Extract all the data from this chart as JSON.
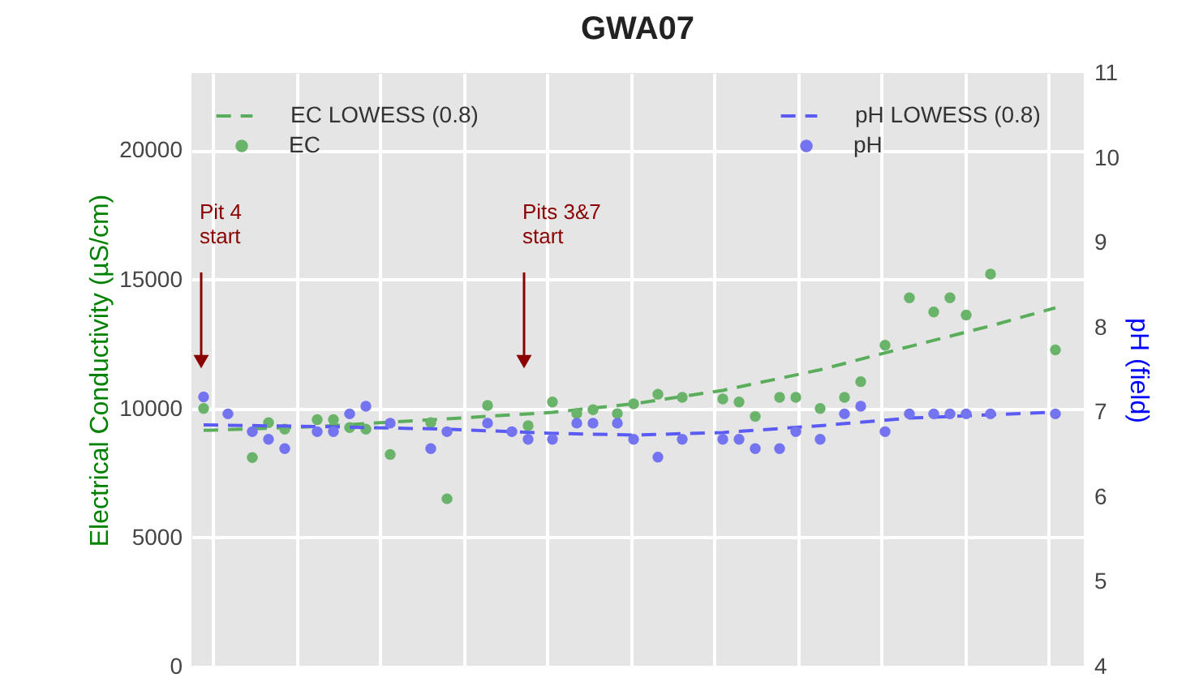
{
  "chart_data": {
    "type": "scatter",
    "title": "GWA07",
    "ylabel": "Electrical Conductivity (µS/cm)",
    "y2label": "pH (field)",
    "categories": [
      null,
      null,
      null,
      null,
      null,
      null,
      null,
      null,
      null,
      null,
      null,
      null,
      null,
      null,
      null,
      null,
      null,
      null,
      null,
      null,
      null,
      null,
      null,
      null,
      null,
      null,
      null,
      null,
      null,
      null,
      null,
      null,
      null,
      null,
      null,
      null,
      null,
      null,
      null,
      null,
      null,
      null,
      null,
      null,
      null,
      null,
      null,
      null,
      null,
      null,
      null,
      null,
      null,
      null,
      null,
      null,
      null,
      null,
      null,
      null,
      null,
      null,
      null,
      null,
      null,
      null,
      null,
      null,
      null,
      null,
      null,
      null,
      null,
      null,
      null,
      null,
      null,
      null,
      null,
      null,
      null,
      null,
      null,
      null,
      null,
      null,
      null,
      null,
      null,
      null,
      null,
      null,
      null,
      null,
      null,
      null,
      null,
      null,
      null,
      null,
      null,
      null,
      null,
      null,
      null,
      null,
      null,
      null,
      null,
      null
    ],
    "ylim": [
      0,
      23000
    ],
    "yticks": [
      0,
      5000,
      10000,
      15000,
      20000
    ],
    "y2lim": [
      4,
      11
    ],
    "y2ticks": [
      4,
      5,
      6,
      7,
      8,
      9,
      10,
      11
    ],
    "grid": true,
    "legend": "top",
    "series": [
      {
        "name": "EC LOWESS (0.8)",
        "type": "line",
        "line_style": "dashed",
        "color": "#5aad5a",
        "values": [
          null,
          9150,
          null,
          null,
          null,
          null,
          null,
          null,
          null,
          null,
          null,
          null,
          null,
          null,
          null,
          9300,
          null,
          null,
          null,
          null,
          null,
          null,
          null,
          null,
          null,
          null,
          null,
          null,
          null,
          null,
          null,
          9600,
          null,
          null,
          null,
          null,
          null,
          null,
          null,
          null,
          null,
          null,
          null,
          null,
          9850,
          null,
          null,
          null,
          null,
          null,
          null,
          null,
          null,
          null,
          10180,
          null,
          null,
          null,
          null,
          null,
          null,
          null,
          null,
          null,
          null,
          10700,
          null,
          null,
          null,
          null,
          null,
          null,
          null,
          null,
          null,
          null,
          null,
          11500,
          null,
          null,
          null,
          null,
          null,
          null,
          null,
          null,
          null,
          null,
          12400,
          null,
          null,
          null,
          null,
          null,
          null,
          null,
          null,
          null,
          13200,
          null,
          null,
          null,
          null,
          null,
          null,
          null,
          13900,
          null,
          null,
          null
        ]
      },
      {
        "name": "EC",
        "marker": "circle",
        "color": "#6ab36a",
        "values": [
          null,
          10000,
          null,
          null,
          null,
          null,
          null,
          8100,
          null,
          9450,
          null,
          9200,
          null,
          null,
          null,
          9570,
          null,
          9570,
          null,
          9260,
          null,
          9200,
          null,
          null,
          8220,
          null,
          null,
          null,
          null,
          9450,
          null,
          6500,
          null,
          null,
          null,
          null,
          10120,
          null,
          null,
          null,
          null,
          9330,
          null,
          null,
          10250,
          null,
          null,
          9800,
          null,
          9950,
          null,
          null,
          9800,
          null,
          10180,
          null,
          null,
          10550,
          null,
          null,
          10430,
          null,
          null,
          null,
          null,
          10370,
          null,
          10250,
          null,
          9690,
          null,
          null,
          10430,
          null,
          10430,
          null,
          null,
          10000,
          null,
          null,
          10430,
          null,
          11040,
          null,
          null,
          12450,
          null,
          null,
          14290,
          null,
          null,
          13740,
          null,
          14290,
          null,
          13620,
          null,
          null,
          15210,
          null,
          null,
          null,
          null,
          null,
          null,
          null,
          12270,
          null,
          null,
          null
        ]
      },
      {
        "name": "pH LOWESS (0.8)",
        "type": "line",
        "axis": "y2",
        "line_style": "dashed",
        "color": "#5a5af5",
        "values": [
          null,
          6.85,
          null,
          null,
          null,
          null,
          null,
          null,
          null,
          null,
          null,
          null,
          null,
          null,
          null,
          6.83,
          null,
          null,
          null,
          null,
          null,
          null,
          null,
          null,
          null,
          null,
          null,
          null,
          null,
          null,
          null,
          6.8,
          null,
          null,
          null,
          null,
          null,
          null,
          null,
          null,
          null,
          null,
          null,
          null,
          6.75,
          null,
          null,
          null,
          null,
          null,
          null,
          null,
          null,
          null,
          6.73,
          null,
          null,
          null,
          null,
          null,
          null,
          null,
          null,
          null,
          null,
          6.76,
          null,
          null,
          null,
          null,
          null,
          null,
          null,
          null,
          null,
          null,
          null,
          6.84,
          null,
          null,
          null,
          null,
          null,
          null,
          null,
          null,
          null,
          null,
          6.93,
          null,
          null,
          null,
          null,
          null,
          null,
          null,
          null,
          null,
          6.97,
          null,
          null,
          null,
          null,
          null,
          null,
          null,
          7.0,
          null,
          null,
          null
        ]
      },
      {
        "name": "pH",
        "axis": "y2",
        "marker": "circle",
        "color": "#7474f0",
        "values": [
          null,
          7.18,
          null,
          null,
          6.98,
          null,
          null,
          6.77,
          null,
          6.68,
          null,
          6.57,
          null,
          null,
          null,
          6.77,
          null,
          6.77,
          null,
          6.98,
          null,
          7.07,
          null,
          null,
          6.87,
          null,
          null,
          null,
          null,
          6.57,
          null,
          6.77,
          null,
          null,
          null,
          null,
          6.87,
          null,
          null,
          6.77,
          null,
          6.68,
          null,
          null,
          6.68,
          null,
          null,
          6.87,
          null,
          6.87,
          null,
          null,
          6.87,
          null,
          6.68,
          null,
          null,
          6.47,
          null,
          null,
          6.68,
          null,
          null,
          null,
          null,
          6.68,
          null,
          6.68,
          null,
          6.57,
          null,
          null,
          6.57,
          null,
          6.77,
          null,
          null,
          6.68,
          null,
          null,
          6.98,
          null,
          7.07,
          null,
          null,
          6.77,
          null,
          null,
          6.98,
          null,
          null,
          6.98,
          null,
          6.98,
          null,
          6.98,
          null,
          null,
          6.98,
          null,
          null,
          null,
          null,
          null,
          null,
          null,
          6.98,
          null,
          null,
          null
        ]
      }
    ],
    "annotations": [
      "Pit 4\nstart",
      "Pits 3&7\nstart"
    ]
  }
}
